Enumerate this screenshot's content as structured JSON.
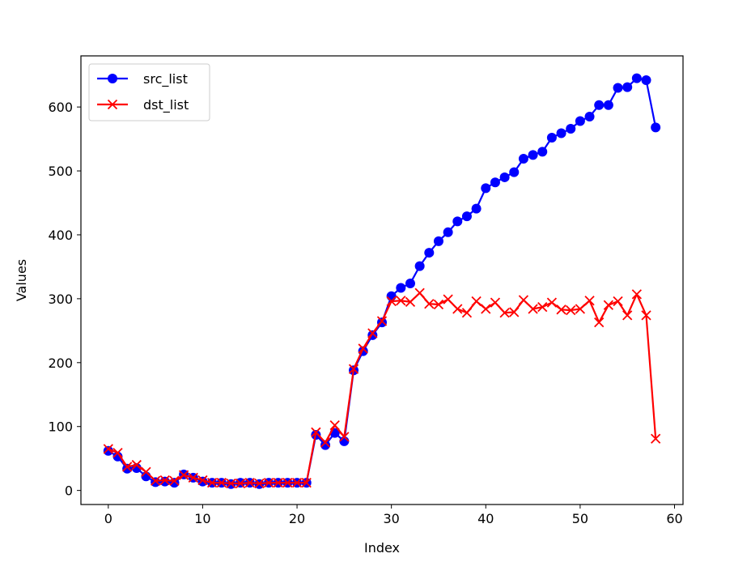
{
  "chart_data": {
    "type": "line",
    "title": "",
    "xlabel": "Index",
    "ylabel": "Values",
    "xlim": [
      -2.9,
      60.9
    ],
    "ylim": [
      -22,
      680
    ],
    "xticks": [
      0,
      10,
      20,
      30,
      40,
      50,
      60
    ],
    "yticks": [
      0,
      100,
      200,
      300,
      400,
      500,
      600
    ],
    "grid": false,
    "legend_position": "top-left",
    "x": [
      0,
      1,
      2,
      3,
      4,
      5,
      6,
      7,
      8,
      9,
      10,
      11,
      12,
      13,
      14,
      15,
      16,
      17,
      18,
      19,
      20,
      21,
      22,
      23,
      24,
      25,
      26,
      27,
      28,
      29,
      30,
      31,
      32,
      33,
      34,
      35,
      36,
      37,
      38,
      39,
      40,
      41,
      42,
      43,
      44,
      45,
      46,
      47,
      48,
      49,
      50,
      51,
      52,
      53,
      54,
      55,
      56,
      57,
      58
    ],
    "series": [
      {
        "name": "src_list",
        "color": "#0000ff",
        "marker": "circle",
        "values": [
          62,
          53,
          34,
          35,
          22,
          13,
          14,
          12,
          25,
          20,
          14,
          12,
          12,
          10,
          12,
          12,
          10,
          12,
          12,
          12,
          12,
          12,
          87,
          71,
          90,
          77,
          188,
          218,
          243,
          263,
          304,
          317,
          324,
          351,
          372,
          390,
          404,
          421,
          429,
          441,
          473,
          482,
          490,
          498,
          519,
          525,
          530,
          552,
          559,
          566,
          578,
          585,
          603,
          603,
          630,
          631,
          645,
          642,
          568
        ]
      },
      {
        "name": "dst_list",
        "color": "#ff0000",
        "marker": "x",
        "values": [
          65,
          59,
          37,
          40,
          29,
          15,
          16,
          15,
          24,
          20,
          16,
          12,
          12,
          11,
          11,
          12,
          11,
          12,
          12,
          12,
          12,
          12,
          91,
          75,
          102,
          84,
          190,
          222,
          246,
          265,
          296,
          297,
          295,
          309,
          292,
          291,
          299,
          284,
          278,
          296,
          284,
          294,
          278,
          279,
          298,
          284,
          287,
          294,
          283,
          282,
          284,
          297,
          263,
          290,
          296,
          274,
          307,
          274,
          81
        ]
      }
    ]
  }
}
